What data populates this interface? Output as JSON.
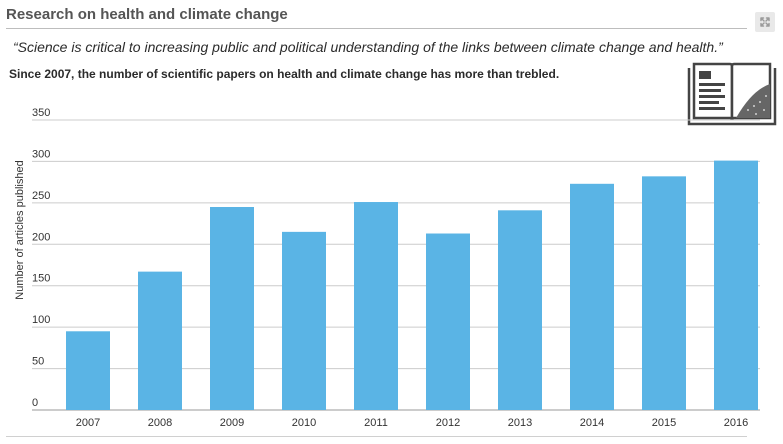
{
  "header": {
    "title": "Research on health and climate change"
  },
  "quote": "“Science is critical to increasing public and political understanding of the links between climate change and health.”",
  "subtitle": "Since 2007, the number of scientific papers on health and climate change has more than trebled.",
  "icons": {
    "expand": "expand-icon",
    "book": "book-icon"
  },
  "colors": {
    "bar": "#5ab4e5",
    "grid": "#cccccc",
    "text": "#333333"
  },
  "chart_data": {
    "type": "bar",
    "categories": [
      "2007",
      "2008",
      "2009",
      "2010",
      "2011",
      "2012",
      "2013",
      "2014",
      "2015",
      "2016"
    ],
    "values": [
      95,
      167,
      245,
      215,
      251,
      213,
      241,
      273,
      282,
      301
    ],
    "ylabel": "Number of articles published",
    "xlabel": "",
    "ylim": [
      0,
      350
    ],
    "yticks": [
      0,
      50,
      100,
      150,
      200,
      250,
      300,
      350
    ],
    "grid": true,
    "legend": "none"
  }
}
